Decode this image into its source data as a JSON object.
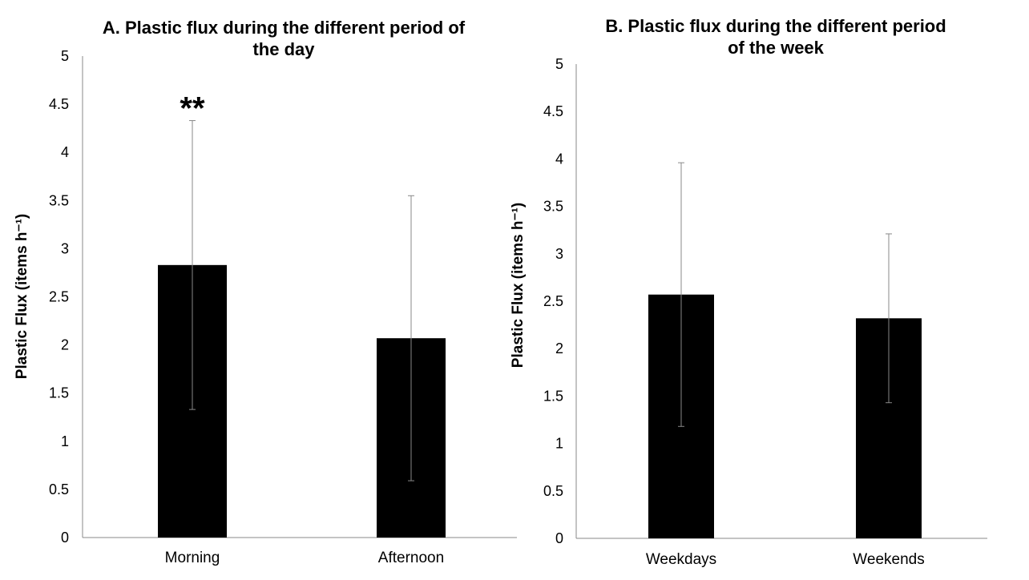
{
  "chart_data": [
    {
      "type": "bar",
      "title_lines": [
        "A. Plastic flux during the different period of",
        "the day"
      ],
      "ylabel": "Plastic Flux (items h⁻¹)",
      "xlabel": "",
      "categories": [
        "Morning",
        "Afternoon"
      ],
      "values": [
        2.83,
        2.07
      ],
      "error": [
        1.5,
        1.48
      ],
      "ylim": [
        0,
        5
      ],
      "yticks": [
        "0",
        "0.5",
        "1",
        "1.5",
        "2",
        "2.5",
        "3",
        "3.5",
        "4",
        "4.5",
        "5"
      ],
      "annotations": [
        "**",
        ""
      ],
      "bar_color": "#000000",
      "grid": false
    },
    {
      "type": "bar",
      "title_lines": [
        "B. Plastic flux during the different period",
        "of the week"
      ],
      "ylabel": "Plastic Flux  (items h⁻¹)",
      "xlabel": "",
      "categories": [
        "Weekdays",
        "Weekends"
      ],
      "values": [
        2.57,
        2.32
      ],
      "error": [
        1.39,
        0.89
      ],
      "ylim": [
        0,
        5
      ],
      "yticks": [
        "0",
        "0.5",
        "1",
        "1.5",
        "2",
        "2.5",
        "3",
        "3.5",
        "4",
        "4.5",
        "5"
      ],
      "annotations": [
        "",
        ""
      ],
      "bar_color": "#000000",
      "grid": false
    }
  ]
}
